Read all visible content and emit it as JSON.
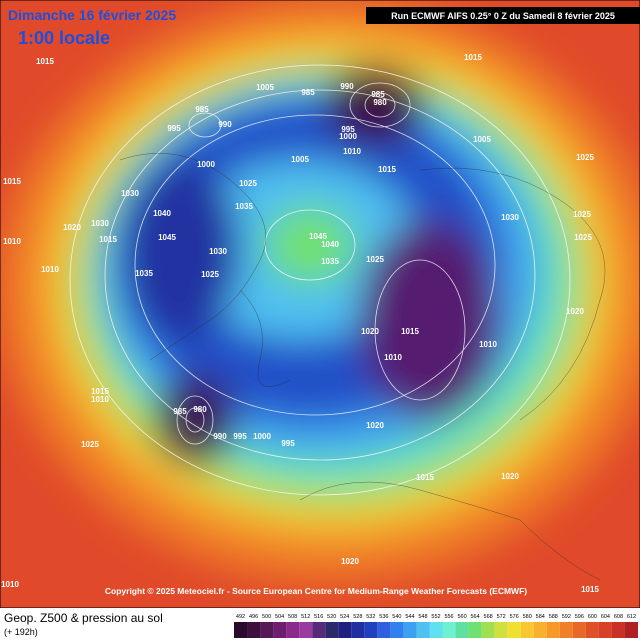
{
  "header": {
    "title": "Dimanche 16 février 2025",
    "time": "1:00 locale",
    "run": "Run ECMWF AIFS 0.25° 0 Z du Samedi 8 février 2025"
  },
  "footer": {
    "copyright": "Copyright © 2025 Meteociel.fr - Source European Centre for Medium-Range Weather Forecasts (ECMWF)",
    "field": "Geop. Z500 & pression au sol",
    "lead": "(+ 192h)"
  },
  "colorbar": {
    "labels": [
      492,
      496,
      500,
      504,
      508,
      512,
      516,
      520,
      524,
      528,
      532,
      536,
      540,
      544,
      548,
      552,
      556,
      560,
      564,
      568,
      572,
      576,
      580,
      584,
      588,
      592,
      596,
      600,
      604,
      608,
      612
    ],
    "colors": [
      "#2a0a2a",
      "#3c0f3f",
      "#551a55",
      "#6e1e6e",
      "#8a2a8a",
      "#9a3aa0",
      "#5a2a7a",
      "#2a2a6a",
      "#202080",
      "#2030a0",
      "#2040c0",
      "#3060e0",
      "#3080f0",
      "#40a0f0",
      "#50c0f0",
      "#60e0f0",
      "#70f0d0",
      "#60e0a0",
      "#70e070",
      "#a0e050",
      "#d0e040",
      "#f0e030",
      "#f8c830",
      "#f8b030",
      "#f89828",
      "#f08028",
      "#e86828",
      "#e05028",
      "#d84028",
      "#c83028",
      "#b02020"
    ]
  },
  "isobar_labels": [
    1015,
    1005,
    985,
    990,
    985,
    980,
    1015,
    985,
    990,
    995,
    995,
    1000,
    1010,
    1005,
    1005,
    1000,
    1015,
    1025,
    1015,
    1025,
    1030,
    1035,
    1040,
    1020,
    1030,
    1045,
    1045,
    1040,
    1030,
    1035,
    1025,
    1010,
    1015,
    1035,
    1025,
    1030,
    1025,
    1025,
    1010,
    1015,
    1020,
    1010,
    1010,
    1020,
    1015,
    1010,
    985,
    980,
    990,
    995,
    1000,
    995,
    1020,
    1025,
    1015,
    1020,
    1020,
    1010,
    1015
  ]
}
